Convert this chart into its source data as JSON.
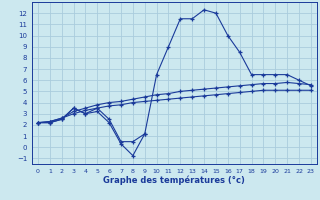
{
  "xlabel": "Graphe des températures (°c)",
  "background_color": "#cce8ef",
  "grid_color": "#aaccdd",
  "line_color": "#1a3a9a",
  "x_values": [
    0,
    1,
    2,
    3,
    4,
    5,
    6,
    7,
    8,
    9,
    10,
    11,
    12,
    13,
    14,
    15,
    16,
    17,
    18,
    19,
    20,
    21,
    22,
    23
  ],
  "curve1": [
    2.2,
    2.2,
    2.5,
    3.5,
    3.0,
    3.5,
    2.5,
    0.5,
    0.5,
    1.2,
    6.5,
    9.0,
    11.5,
    11.5,
    12.3,
    12.0,
    10.0,
    8.5,
    6.5,
    6.5,
    6.5,
    6.5,
    6.0,
    5.5
  ],
  "curve2_x": [
    0,
    1,
    2,
    3,
    4,
    5,
    6,
    7,
    8,
    9
  ],
  "curve2_y": [
    2.2,
    2.2,
    2.5,
    3.5,
    3.0,
    3.2,
    2.2,
    0.3,
    -0.75,
    1.2
  ],
  "curve3": [
    2.2,
    2.3,
    2.6,
    3.2,
    3.5,
    3.8,
    4.0,
    4.1,
    4.3,
    4.5,
    4.7,
    4.8,
    5.0,
    5.1,
    5.2,
    5.3,
    5.4,
    5.5,
    5.6,
    5.7,
    5.7,
    5.8,
    5.7,
    5.6
  ],
  "curve4": [
    2.2,
    2.3,
    2.6,
    3.0,
    3.3,
    3.5,
    3.7,
    3.8,
    4.0,
    4.1,
    4.2,
    4.3,
    4.4,
    4.5,
    4.6,
    4.7,
    4.8,
    4.9,
    5.0,
    5.1,
    5.1,
    5.1,
    5.1,
    5.1
  ],
  "ylim": [
    -1.5,
    13.0
  ],
  "xlim": [
    -0.5,
    23.5
  ],
  "yticks": [
    -1,
    0,
    1,
    2,
    3,
    4,
    5,
    6,
    7,
    8,
    9,
    10,
    11,
    12
  ],
  "xticks": [
    0,
    1,
    2,
    3,
    4,
    5,
    6,
    7,
    8,
    9,
    10,
    11,
    12,
    13,
    14,
    15,
    16,
    17,
    18,
    19,
    20,
    21,
    22,
    23
  ]
}
